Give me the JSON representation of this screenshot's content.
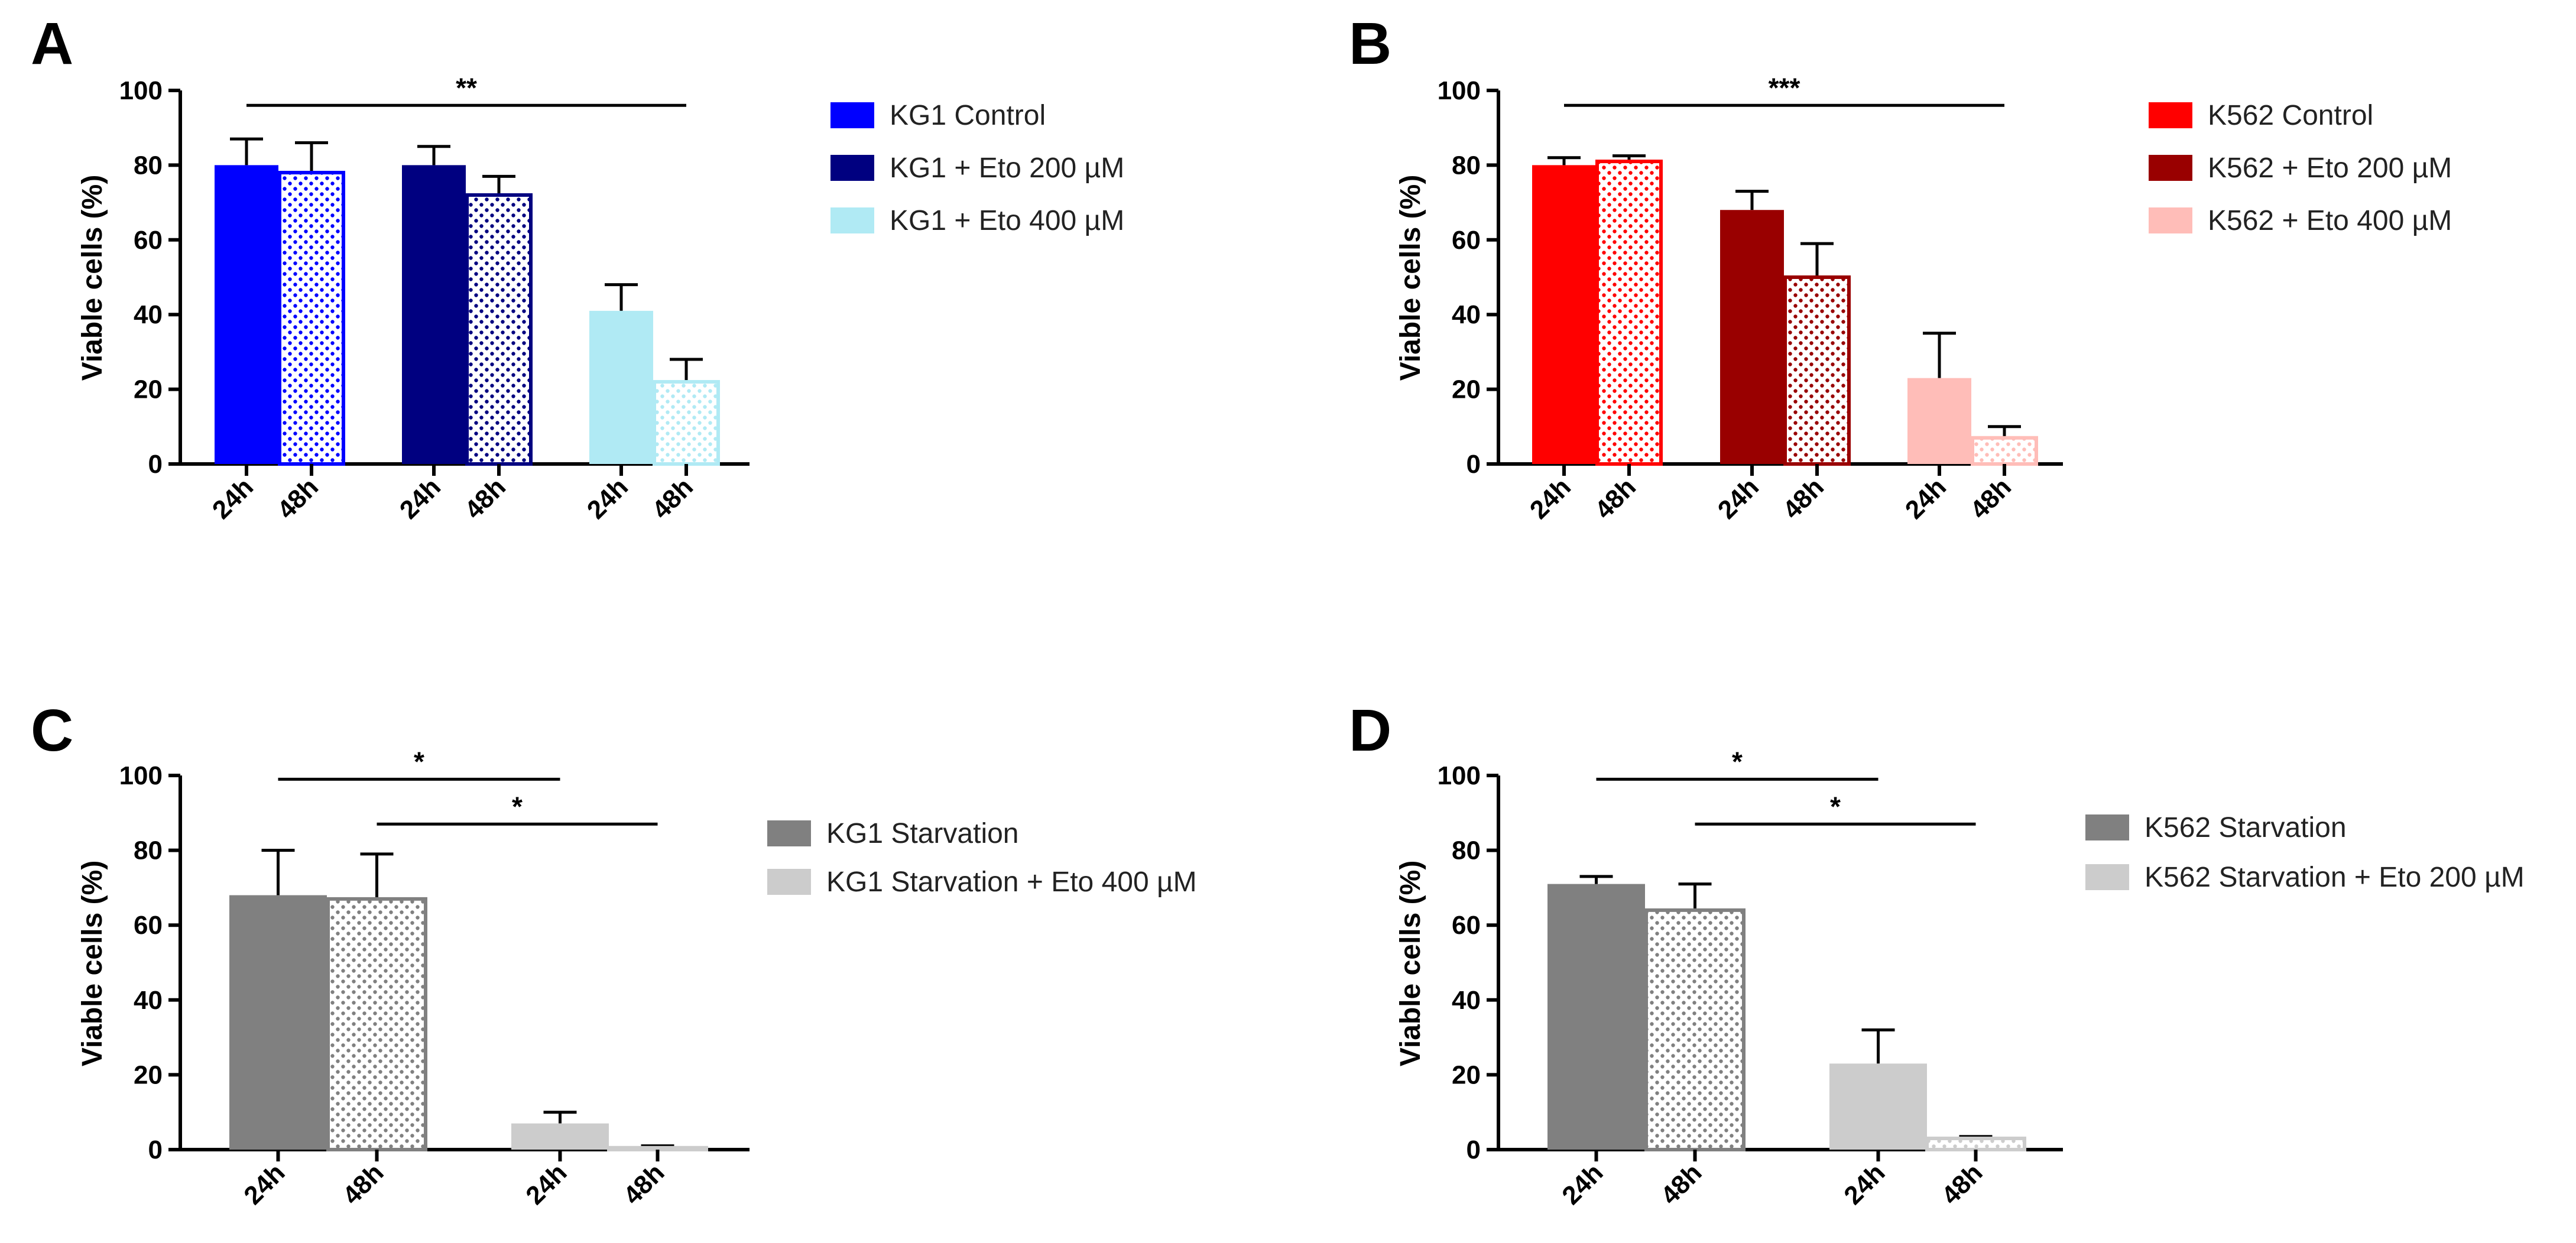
{
  "colors": {
    "kg1_control": "#0000ff",
    "kg1_eto200": "#000080",
    "kg1_eto400": "#b0eaf4",
    "k562_control": "#ff0000",
    "k562_eto200": "#990000",
    "k562_eto400": "#ffbdb8",
    "starvation": "#808080",
    "starvation_eto": "#cccccc"
  },
  "chart_data": [
    {
      "panel": "A",
      "type": "bar",
      "ylabel": "Viable cells (%)",
      "ylim": [
        0,
        100
      ],
      "yticks": [
        0,
        20,
        40,
        60,
        80,
        100
      ],
      "grid": false,
      "legend_position": "right",
      "categories": [
        "24h",
        "48h",
        "24h",
        "48h",
        "24h",
        "48h"
      ],
      "series": [
        {
          "name": "KG1 Control",
          "color_key": "kg1_control",
          "values": [
            {
              "x": "24h",
              "y": 80,
              "err": 7,
              "pattern": "solid"
            },
            {
              "x": "48h",
              "y": 78,
              "err": 8,
              "pattern": "dotted"
            }
          ]
        },
        {
          "name": "KG1 + Eto 200 µM",
          "color_key": "kg1_eto200",
          "values": [
            {
              "x": "24h",
              "y": 80,
              "err": 5,
              "pattern": "solid"
            },
            {
              "x": "48h",
              "y": 72,
              "err": 5,
              "pattern": "dotted"
            }
          ]
        },
        {
          "name": "KG1 + Eto 400 µM",
          "color_key": "kg1_eto400",
          "values": [
            {
              "x": "24h",
              "y": 41,
              "err": 7,
              "pattern": "solid"
            },
            {
              "x": "48h",
              "y": 22,
              "err": 6,
              "pattern": "dotted"
            }
          ]
        }
      ],
      "significance": [
        {
          "label": "**",
          "from_bar": 0,
          "to_bar": 5,
          "y": 96
        }
      ]
    },
    {
      "panel": "B",
      "type": "bar",
      "ylabel": "Viable cells (%)",
      "ylim": [
        0,
        100
      ],
      "yticks": [
        0,
        20,
        40,
        60,
        80,
        100
      ],
      "grid": false,
      "legend_position": "right",
      "categories": [
        "24h",
        "48h",
        "24h",
        "48h",
        "24h",
        "48h"
      ],
      "series": [
        {
          "name": "K562 Control",
          "color_key": "k562_control",
          "values": [
            {
              "x": "24h",
              "y": 80,
              "err": 2,
              "pattern": "solid"
            },
            {
              "x": "48h",
              "y": 81,
              "err": 1.5,
              "pattern": "dotted"
            }
          ]
        },
        {
          "name": "K562 + Eto 200 µM",
          "color_key": "k562_eto200",
          "values": [
            {
              "x": "24h",
              "y": 68,
              "err": 5,
              "pattern": "solid"
            },
            {
              "x": "48h",
              "y": 50,
              "err": 9,
              "pattern": "dotted"
            }
          ]
        },
        {
          "name": "K562 + Eto 400 µM",
          "color_key": "k562_eto400",
          "values": [
            {
              "x": "24h",
              "y": 23,
              "err": 12,
              "pattern": "solid"
            },
            {
              "x": "48h",
              "y": 7,
              "err": 3,
              "pattern": "dotted"
            }
          ]
        }
      ],
      "significance": [
        {
          "label": "***",
          "from_bar": 0,
          "to_bar": 5,
          "y": 96
        }
      ]
    },
    {
      "panel": "C",
      "type": "bar",
      "ylabel": "Viable cells (%)",
      "ylim": [
        0,
        100
      ],
      "yticks": [
        0,
        20,
        40,
        60,
        80,
        100
      ],
      "grid": false,
      "legend_position": "right",
      "categories": [
        "24h",
        "48h",
        "24h",
        "48h"
      ],
      "series": [
        {
          "name": "KG1 Starvation",
          "color_key": "starvation",
          "values": [
            {
              "x": "24h",
              "y": 68,
              "err": 12,
              "pattern": "solid"
            },
            {
              "x": "48h",
              "y": 67,
              "err": 12,
              "pattern": "dotted"
            }
          ]
        },
        {
          "name": "KG1 Starvation + Eto 400 µM",
          "color_key": "starvation_eto",
          "values": [
            {
              "x": "24h",
              "y": 7,
              "err": 3,
              "pattern": "solid"
            },
            {
              "x": "48h",
              "y": 0.5,
              "err": 0.5,
              "pattern": "dotted"
            }
          ]
        }
      ],
      "significance": [
        {
          "label": "*",
          "from_bar": 0,
          "to_bar": 2,
          "y": 99
        },
        {
          "label": "*",
          "from_bar": 1,
          "to_bar": 3,
          "y": 87
        }
      ]
    },
    {
      "panel": "D",
      "type": "bar",
      "ylabel": "Viable cells (%)",
      "ylim": [
        0,
        100
      ],
      "yticks": [
        0,
        20,
        40,
        60,
        80,
        100
      ],
      "grid": false,
      "legend_position": "right",
      "categories": [
        "24h",
        "48h",
        "24h",
        "48h"
      ],
      "series": [
        {
          "name": "K562 Starvation",
          "color_key": "starvation",
          "values": [
            {
              "x": "24h",
              "y": 71,
              "err": 2,
              "pattern": "solid"
            },
            {
              "x": "48h",
              "y": 64,
              "err": 7,
              "pattern": "dotted"
            }
          ]
        },
        {
          "name": "K562 Starvation + Eto 200 µM",
          "color_key": "starvation_eto",
          "values": [
            {
              "x": "24h",
              "y": 23,
              "err": 9,
              "pattern": "solid"
            },
            {
              "x": "48h",
              "y": 3,
              "err": 0.5,
              "pattern": "dotted"
            }
          ]
        }
      ],
      "significance": [
        {
          "label": "*",
          "from_bar": 0,
          "to_bar": 2,
          "y": 99
        },
        {
          "label": "*",
          "from_bar": 1,
          "to_bar": 3,
          "y": 87
        }
      ]
    }
  ]
}
